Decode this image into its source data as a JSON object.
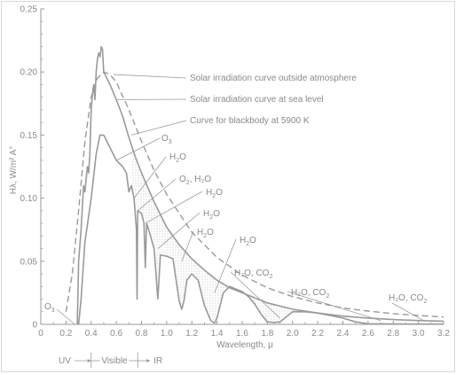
{
  "chart_data": {
    "type": "line",
    "xlabel": "Wavelength, μ",
    "ylabel": "Hλ, W/m² A°",
    "xlim": [
      0,
      3.2
    ],
    "ylim": [
      0,
      0.25
    ],
    "x_ticks": [
      "0",
      "0.2",
      "0.4",
      "0.6",
      "0.8",
      "1.0",
      "1.2",
      "1.4",
      "1.6",
      "1.8",
      "2.0",
      "2.2",
      "2.4",
      "2.6",
      "2.8",
      "3.0",
      "3.2"
    ],
    "y_ticks": [
      "0",
      "0.05",
      "0.10",
      "0.15",
      "0.20",
      "0.25"
    ],
    "grid": false,
    "series": [
      {
        "name": "Solar irradiation curve outside atmosphere",
        "style": "solid",
        "x": [
          0.29,
          0.3,
          0.32,
          0.34,
          0.35,
          0.36,
          0.37,
          0.38,
          0.39,
          0.4,
          0.41,
          0.42,
          0.43,
          0.44,
          0.45,
          0.46,
          0.47,
          0.48,
          0.49,
          0.5,
          0.55,
          0.6,
          0.65,
          0.7,
          0.75,
          0.8,
          0.9,
          1.0,
          1.1,
          1.2,
          1.3,
          1.4,
          1.5,
          1.6,
          1.8,
          2.0,
          2.2,
          2.4,
          2.6,
          2.8,
          3.0,
          3.2
        ],
        "y": [
          0.0,
          0.05,
          0.075,
          0.11,
          0.105,
          0.115,
          0.125,
          0.12,
          0.135,
          0.17,
          0.182,
          0.19,
          0.178,
          0.2,
          0.21,
          0.215,
          0.212,
          0.22,
          0.218,
          0.2,
          0.19,
          0.178,
          0.165,
          0.148,
          0.133,
          0.12,
          0.097,
          0.077,
          0.063,
          0.052,
          0.043,
          0.035,
          0.029,
          0.025,
          0.017,
          0.012,
          0.009,
          0.0065,
          0.005,
          0.0038,
          0.003,
          0.0025
        ]
      },
      {
        "name": "Solar irradiation curve at sea level",
        "style": "solid",
        "x": [
          0.3,
          0.32,
          0.35,
          0.4,
          0.44,
          0.47,
          0.5,
          0.55,
          0.6,
          0.65,
          0.68,
          0.7,
          0.72,
          0.74,
          0.76,
          0.765,
          0.77,
          0.8,
          0.82,
          0.83,
          0.84,
          0.86,
          0.9,
          0.93,
          0.95,
          1.0,
          1.05,
          1.1,
          1.12,
          1.14,
          1.16,
          1.2,
          1.25,
          1.3,
          1.35,
          1.38,
          1.4,
          1.45,
          1.5,
          1.55,
          1.6,
          1.65,
          1.7,
          1.75,
          1.8,
          1.85,
          1.9,
          1.95,
          2.0,
          2.1,
          2.2,
          2.3,
          2.4,
          2.5,
          2.6,
          2.8,
          3.0,
          3.2
        ],
        "y": [
          0.0,
          0.02,
          0.065,
          0.1,
          0.135,
          0.15,
          0.15,
          0.14,
          0.13,
          0.125,
          0.12,
          0.105,
          0.11,
          0.1,
          0.075,
          0.02,
          0.09,
          0.088,
          0.08,
          0.045,
          0.08,
          0.074,
          0.06,
          0.02,
          0.055,
          0.054,
          0.052,
          0.018,
          0.012,
          0.02,
          0.035,
          0.04,
          0.035,
          0.015,
          0.003,
          0.001,
          0.005,
          0.025,
          0.03,
          0.028,
          0.026,
          0.022,
          0.016,
          0.008,
          0.002,
          0.0015,
          0.002,
          0.006,
          0.01,
          0.01,
          0.009,
          0.007,
          0.005,
          0.002,
          0.0005,
          0.0003,
          0.0002,
          0.0002
        ]
      },
      {
        "name": "Curve for blackbody at 5900 K",
        "style": "dashed",
        "x": [
          0.2,
          0.25,
          0.3,
          0.35,
          0.4,
          0.45,
          0.5,
          0.55,
          0.6,
          0.7,
          0.8,
          0.9,
          1.0,
          1.2,
          1.4,
          1.6,
          1.8,
          2.0,
          2.2,
          2.4,
          2.6,
          2.8,
          3.0,
          3.2
        ],
        "y": [
          0.01,
          0.04,
          0.09,
          0.145,
          0.18,
          0.195,
          0.2,
          0.198,
          0.192,
          0.17,
          0.145,
          0.122,
          0.103,
          0.073,
          0.053,
          0.039,
          0.029,
          0.022,
          0.017,
          0.013,
          0.0105,
          0.0085,
          0.007,
          0.0058
        ]
      }
    ],
    "annotations": [
      {
        "text": "Solar irradiation curve outside atmosphere",
        "target_x": 0.58,
        "target_y": 0.198
      },
      {
        "text": "Solar irradiation curve at sea level",
        "target_x": 0.6,
        "target_y": 0.178
      },
      {
        "text": "Curve for blackbody at 5900 K",
        "target_x": 0.72,
        "target_y": 0.15
      },
      {
        "text": "O",
        "sub": "3",
        "target_x": 0.6,
        "target_y": 0.13
      },
      {
        "text": "H",
        "sub": "2",
        "tail": "O",
        "target_x": 0.74,
        "target_y": 0.1
      },
      {
        "text": "O",
        "sub": "2",
        "tail": ", H₂O",
        "target_x": 0.77,
        "target_y": 0.09
      },
      {
        "text": "H",
        "sub": "2",
        "tail": "O",
        "target_x": 0.83,
        "target_y": 0.08
      },
      {
        "text": "H",
        "sub": "2",
        "tail": "O",
        "target_x": 0.93,
        "target_y": 0.06
      },
      {
        "text": "H",
        "sub": "2",
        "tail": "O",
        "target_x": 1.12,
        "target_y": 0.05
      },
      {
        "text": "H",
        "sub": "2",
        "tail": "O",
        "target_x": 1.38,
        "target_y": 0.025
      },
      {
        "text": "H₂O, CO",
        "sub": "2",
        "target_x": 1.9,
        "target_y": 0.005
      },
      {
        "text": "H₂O, CO",
        "sub": "2",
        "target_x": 2.7,
        "target_y": 0.003
      },
      {
        "text": "H₂O, CO",
        "sub": "2",
        "target_x": 3.05,
        "target_y": 0.0025
      },
      {
        "text": "O",
        "sub": "3",
        "target_x": 0.27,
        "target_y": 0.0
      }
    ],
    "bands": [
      {
        "label": "UV",
        "arrow": "left"
      },
      {
        "label": "Visible",
        "arrow": "both"
      },
      {
        "label": "IR",
        "arrow": "right"
      }
    ],
    "colors": {
      "curve": "#9a9a9a",
      "axis": "#9a9a9a",
      "text": "#8a8a8a",
      "absorption_shading": "#b0b0b0"
    }
  }
}
